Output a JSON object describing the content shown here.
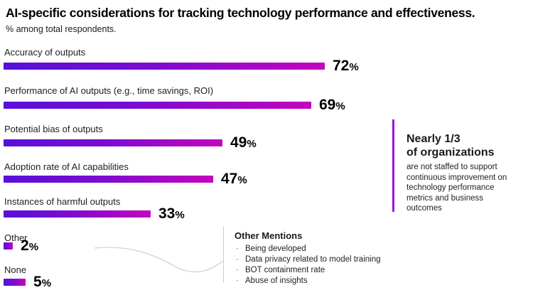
{
  "header": {
    "title": "AI-specific considerations for tracking technology performance and effectiveness.",
    "subtitle": "% among total respondents."
  },
  "chart_data": {
    "type": "bar",
    "orientation": "horizontal",
    "title": "AI-specific considerations for tracking technology performance and effectiveness.",
    "subtitle": "% among total respondents.",
    "categories": [
      "Accuracy of outputs",
      "Performance of AI outputs (e.g., time savings, ROI)",
      "Potential bias of outputs",
      "Adoption rate of AI capabilities",
      "Instances of harmful outputs",
      "Other",
      "None"
    ],
    "values": [
      72,
      69,
      49,
      47,
      33,
      2,
      5
    ],
    "value_suffix": "%",
    "xlim": [
      0,
      100
    ],
    "grid": false,
    "legend": "none",
    "bar_gradient_start": "#5711d9",
    "bar_gradient_end": "#c405bd"
  },
  "callout": {
    "accent_color": "#9b11ea",
    "heading_line1": "Nearly 1/3",
    "heading_line2": "of organizations",
    "body": "are not staffed to support continuous improvement on technology performance metrics and business outcomes"
  },
  "other_mentions": {
    "title": "Other Mentions",
    "bullet_char": "·",
    "items": [
      "Being developed",
      "Data privacy related to model training",
      "BOT containment rate",
      "Abuse of insights"
    ]
  }
}
